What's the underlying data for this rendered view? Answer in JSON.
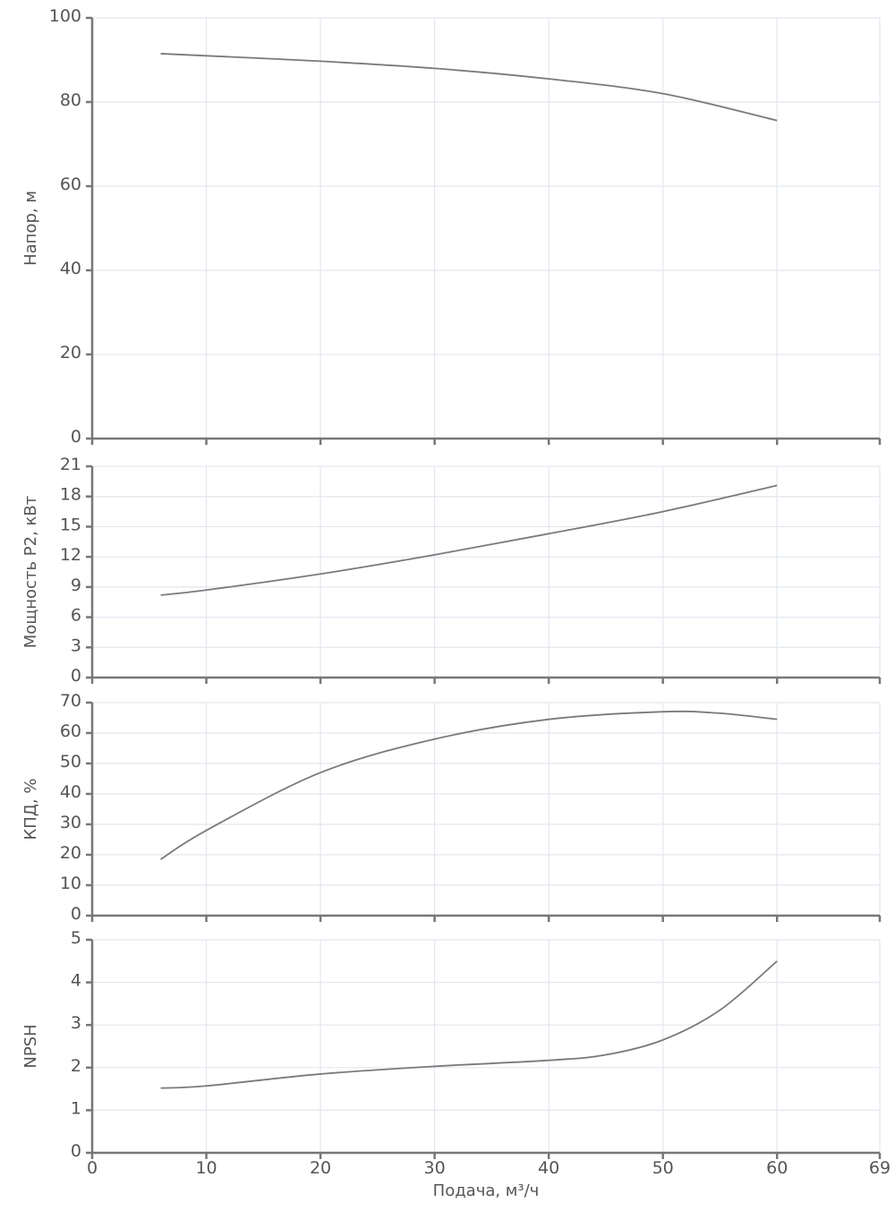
{
  "chart_data": [
    {
      "type": "line",
      "ylabel": "Напор, м",
      "ylim": [
        0,
        100
      ],
      "yticks": [
        "0",
        "20",
        "40",
        "60",
        "80",
        "100"
      ],
      "x": [
        6,
        10,
        20,
        30,
        40,
        50,
        60
      ],
      "values": [
        91.5,
        91,
        89.7,
        88,
        85.5,
        82,
        75.6
      ],
      "grid": true
    },
    {
      "type": "line",
      "ylabel": "Мощность P2, кВт",
      "ylim": [
        0,
        21
      ],
      "yticks": [
        "0",
        "3",
        "6",
        "9",
        "12",
        "15",
        "18",
        "21"
      ],
      "x": [
        6,
        10,
        20,
        30,
        40,
        50,
        60
      ],
      "values": [
        8.2,
        8.7,
        10.3,
        12.2,
        14.3,
        16.5,
        19.1
      ],
      "grid": true
    },
    {
      "type": "line",
      "ylabel": "КПД, %",
      "ylim": [
        0,
        70
      ],
      "yticks": [
        "0",
        "10",
        "20",
        "30",
        "40",
        "50",
        "60",
        "70"
      ],
      "x": [
        6,
        10,
        20,
        30,
        40,
        50,
        55,
        60
      ],
      "values": [
        18.5,
        28,
        47,
        58,
        64.5,
        67,
        66.5,
        64.5
      ],
      "grid": true
    },
    {
      "type": "line",
      "ylabel": "NPSH",
      "ylim": [
        0,
        5
      ],
      "yticks": [
        "0",
        "1",
        "2",
        "3",
        "4",
        "5"
      ],
      "x": [
        6,
        10,
        20,
        30,
        40,
        45,
        50,
        55,
        60
      ],
      "values": [
        1.52,
        1.57,
        1.85,
        2.03,
        2.17,
        2.3,
        2.65,
        3.35,
        4.5
      ],
      "grid": true
    }
  ],
  "xaxis": {
    "label": "Подача, м³/ч",
    "xlim": [
      0,
      69
    ],
    "ticks": [
      "0",
      "10",
      "20",
      "30",
      "40",
      "50",
      "60",
      "69"
    ]
  },
  "colors": {
    "curve": "#7a7a7a",
    "axis": "#777777",
    "grid": "#e3e7ef"
  }
}
